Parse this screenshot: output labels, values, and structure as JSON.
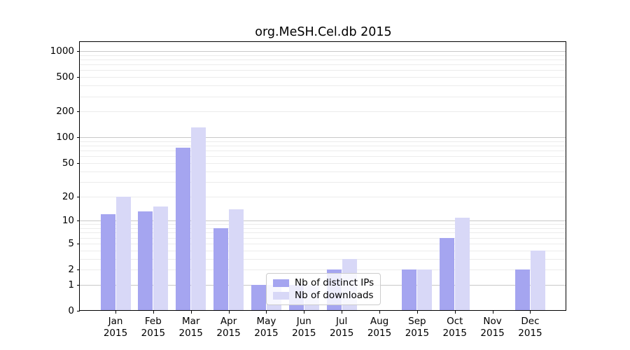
{
  "chart_data": {
    "type": "bar",
    "title": "org.MeSH.Cel.db 2015",
    "xlabel": "",
    "ylabel": "",
    "y_scale": "log1p",
    "y_ticks": [
      0,
      1,
      2,
      5,
      10,
      20,
      50,
      100,
      200,
      500,
      1000
    ],
    "ylim": [
      0,
      1280
    ],
    "grid": {
      "major_color": "#c8c8c8",
      "minor_color": "#ececec",
      "minor_at": "2-9 per decade"
    },
    "categories": [
      "Jan 2015",
      "Feb 2015",
      "Mar 2015",
      "Apr 2015",
      "May 2015",
      "Jun 2015",
      "Jul 2015",
      "Aug 2015",
      "Sep 2015",
      "Oct 2015",
      "Nov 2015",
      "Dec 2015"
    ],
    "series": [
      {
        "name": "Nb of distinct IPs",
        "color": "#a5a5f0",
        "values": [
          12,
          13,
          75,
          8,
          1,
          1,
          2,
          0,
          2,
          6,
          0,
          2
        ]
      },
      {
        "name": "Nb of downloads",
        "color": "#d8d8f7",
        "values": [
          20,
          15,
          130,
          14,
          1,
          1,
          3,
          0,
          2,
          11,
          0,
          4
        ]
      }
    ],
    "legend": {
      "location": "bottom-center-inside",
      "background": "rgba(255,255,255,0.8)",
      "border_color": "#cccccc"
    }
  }
}
